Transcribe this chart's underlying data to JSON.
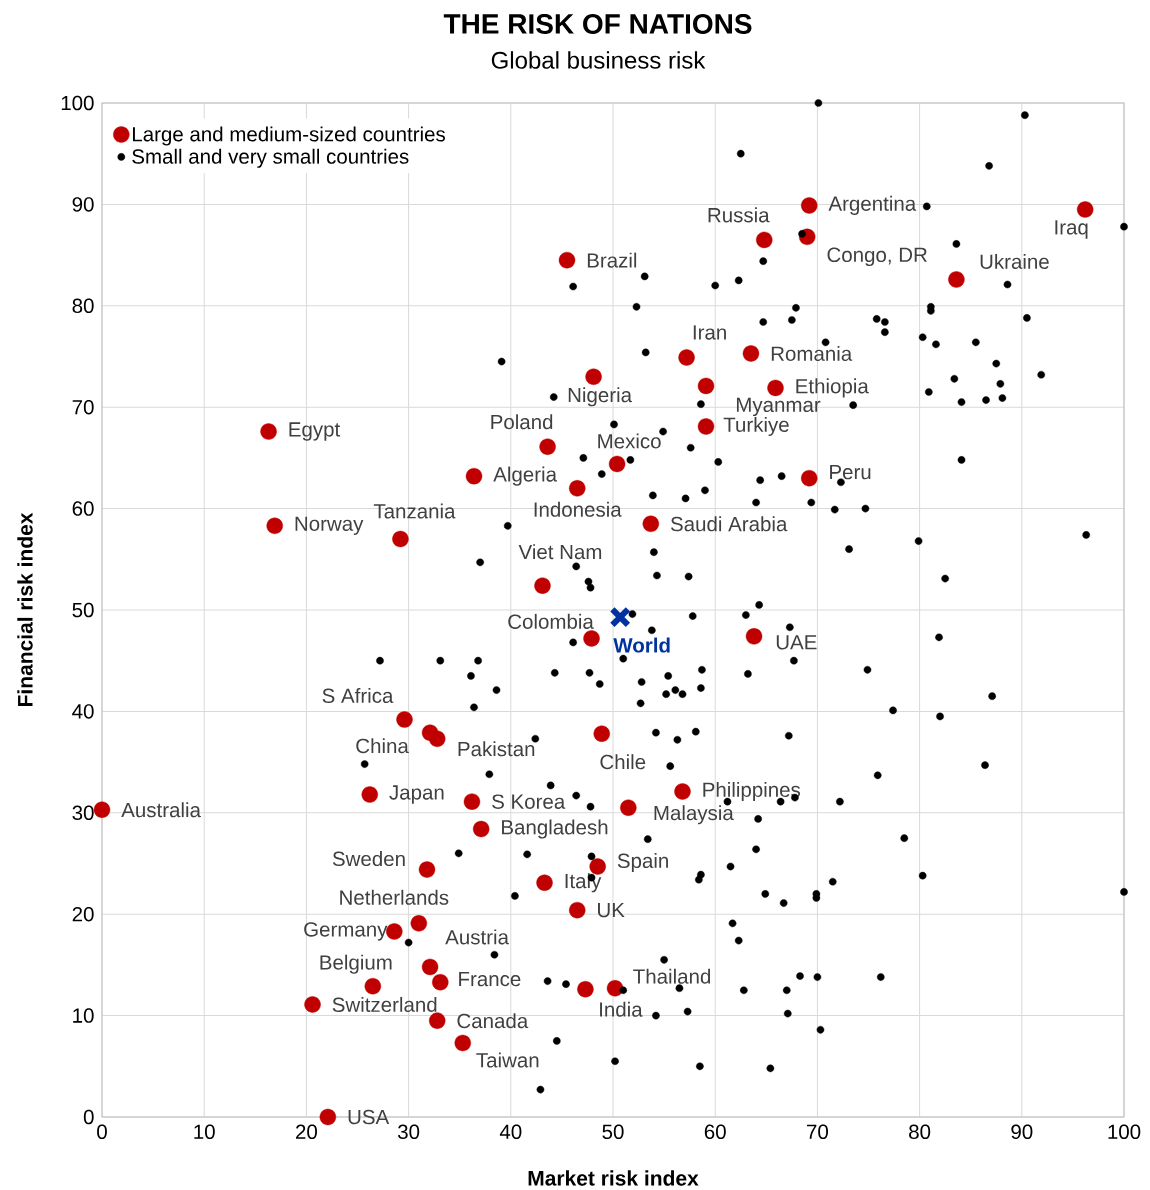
{
  "chart_data": {
    "type": "scatter",
    "title": "THE RISK OF NATIONS",
    "subtitle": "Global business risk",
    "xlabel": "Market risk index",
    "ylabel": "Financial risk index",
    "xlim": [
      0,
      100
    ],
    "ylim": [
      0,
      100
    ],
    "xticks": [
      0,
      10,
      20,
      30,
      40,
      50,
      60,
      70,
      80,
      90,
      100
    ],
    "yticks": [
      0,
      10,
      20,
      30,
      40,
      50,
      60,
      70,
      80,
      90,
      100
    ],
    "grid": true,
    "legend": "top left",
    "series": [
      {
        "name": "Large and medium-sized countries",
        "color": "#c00000",
        "marker": "circle",
        "x": [
          0,
          22.1,
          20.6,
          26.5,
          32.8,
          35.3,
          33.1,
          32.1,
          28.6,
          31.0,
          31.8,
          37.1,
          36.2,
          26.2,
          32.1,
          32.8,
          29.6,
          43.3,
          46.5,
          48.5,
          47.3,
          50.2,
          51.5,
          56.8,
          48.9,
          47.9,
          63.8,
          43.1,
          29.2,
          16.9,
          16.3,
          36.4,
          46.5,
          43.6,
          50.4,
          48.1,
          45.5,
          53.7,
          69.2,
          59.1,
          59.1,
          65.9,
          57.2,
          63.5,
          64.8,
          69.0,
          69.2,
          83.6,
          96.2
        ],
        "values": [
          30.3,
          0,
          11.1,
          12.9,
          9.5,
          7.3,
          13.3,
          14.8,
          18.3,
          19.1,
          24.4,
          28.4,
          31.1,
          31.8,
          37.9,
          37.3,
          39.2,
          23.1,
          20.4,
          24.7,
          12.6,
          12.7,
          30.5,
          32.1,
          37.8,
          47.2,
          47.4,
          52.4,
          57.0,
          58.3,
          67.6,
          63.2,
          62.0,
          66.1,
          64.4,
          73.0,
          84.5,
          58.5,
          63.0,
          68.1,
          72.1,
          71.9,
          74.9,
          75.3,
          86.5,
          86.8,
          89.9,
          82.6,
          89.5
        ]
      },
      {
        "name": "Small and very small countries",
        "color": "#000000",
        "marker": "circle",
        "x": [
          70.1,
          90.3,
          62.5,
          86.8,
          80.7,
          100,
          83.6,
          64.7,
          68.5,
          46.1,
          53.1,
          60.0,
          62.3,
          88.6,
          52.3,
          67.9,
          81.1,
          81.1,
          75.8,
          76.6,
          76.6,
          64.7,
          67.5,
          90.5,
          70.8,
          80.3,
          81.6,
          85.5,
          39.1,
          53.2,
          87.5,
          83.4,
          87.9,
          91.9,
          80.9,
          44.2,
          58.6,
          73.5,
          84.1,
          86.5,
          88.1,
          50.1,
          54.9,
          57.6,
          51.7,
          60.3,
          47.1,
          48.9,
          64.4,
          66.5,
          72.3,
          84.1,
          53.9,
          57.1,
          59.0,
          64.0,
          69.4,
          71.7,
          74.7,
          79.9,
          82.5,
          96.3,
          73.1,
          54.0,
          54.3,
          57.4,
          64.3,
          39.7,
          37.0,
          46.4,
          47.6,
          47.8,
          51.9,
          57.8,
          63.0,
          53.8,
          67.3,
          81.9,
          51.0,
          67.7,
          74.9,
          48.7,
          52.8,
          55.4,
          58.7,
          63.2,
          55.2,
          56.1,
          56.8,
          58.6,
          52.7,
          87.1,
          77.4,
          82.0,
          54.2,
          56.3,
          58.1,
          67.2,
          55.6,
          75.9,
          86.4,
          61.2,
          66.4,
          67.8,
          72.2,
          64.2,
          53.4,
          78.5,
          64.0,
          61.5,
          58.6,
          58.4,
          80.3,
          71.5,
          64.9,
          66.7,
          69.9,
          69.9,
          100,
          61.7,
          62.3,
          55.0,
          68.3,
          70.0,
          76.2,
          51.0,
          56.5,
          62.8,
          67.0,
          54.2,
          57.3,
          67.1,
          70.3,
          58.5,
          65.4,
          46.1,
          27.2,
          33.1,
          36.8,
          36.1,
          38.6,
          44.3,
          47.7,
          36.4,
          42.4,
          25.7,
          37.9,
          43.9,
          46.4,
          47.8,
          34.9,
          41.6,
          47.9,
          47.9,
          40.4,
          30.0,
          38.4,
          43.6,
          45.4,
          44.5,
          50.2,
          42.9
        ],
        "values": [
          100,
          98.8,
          95.0,
          93.8,
          89.8,
          87.8,
          86.1,
          84.4,
          87.1,
          81.9,
          82.9,
          82.0,
          82.5,
          82.1,
          79.9,
          79.8,
          79.9,
          79.5,
          78.7,
          78.4,
          77.4,
          78.4,
          78.6,
          78.8,
          76.4,
          76.9,
          76.2,
          76.4,
          74.5,
          75.4,
          74.3,
          72.8,
          72.3,
          73.2,
          71.5,
          71.0,
          70.3,
          70.2,
          70.5,
          70.7,
          70.9,
          68.3,
          67.6,
          66.0,
          64.8,
          64.6,
          65.0,
          63.4,
          62.8,
          63.2,
          62.6,
          64.8,
          61.3,
          61.0,
          61.8,
          60.6,
          60.6,
          59.9,
          60.0,
          56.8,
          53.1,
          57.4,
          56.0,
          55.7,
          53.4,
          53.3,
          50.5,
          58.3,
          54.7,
          54.3,
          52.8,
          52.2,
          49.6,
          49.4,
          49.5,
          48.0,
          48.3,
          47.3,
          45.2,
          45.0,
          44.1,
          42.7,
          42.9,
          43.5,
          44.1,
          43.7,
          41.7,
          42.1,
          41.7,
          42.3,
          40.8,
          41.5,
          40.1,
          39.5,
          37.9,
          37.2,
          38.0,
          37.6,
          34.6,
          33.7,
          34.7,
          31.1,
          31.1,
          31.5,
          31.1,
          29.4,
          27.4,
          27.5,
          26.4,
          24.7,
          23.9,
          23.4,
          23.8,
          23.2,
          22.0,
          21.1,
          22.0,
          21.6,
          22.2,
          19.1,
          17.4,
          15.5,
          13.9,
          13.8,
          13.8,
          12.5,
          12.7,
          12.5,
          12.5,
          10.0,
          10.4,
          10.2,
          8.6,
          5.0,
          4.8,
          46.8,
          45.0,
          45.0,
          45.0,
          43.5,
          42.1,
          43.8,
          43.8,
          40.4,
          37.3,
          34.8,
          33.8,
          32.7,
          31.7,
          30.6,
          26.0,
          25.9,
          25.7,
          23.6,
          21.8,
          17.2,
          16.0,
          13.4,
          13.1,
          7.5,
          5.5,
          2.7
        ]
      },
      {
        "name": "World",
        "color": "#0033a0",
        "marker": "cross",
        "x": [
          50.7
        ],
        "values": [
          49.3
        ]
      }
    ],
    "annotations": [
      {
        "text": "Australia",
        "x": 0,
        "y": 30.3
      },
      {
        "text": "USA",
        "x": 22.1,
        "y": 0
      },
      {
        "text": "Switzerland",
        "x": 20.6,
        "y": 11.1
      },
      {
        "text": "Belgium",
        "x": 26.5,
        "y": 12.9
      },
      {
        "text": "Canada",
        "x": 32.8,
        "y": 9.5
      },
      {
        "text": "Taiwan",
        "x": 35.3,
        "y": 7.3
      },
      {
        "text": "France",
        "x": 33.1,
        "y": 13.3
      },
      {
        "text": "Austria",
        "x": 32.1,
        "y": 14.8
      },
      {
        "text": "Germany",
        "x": 28.6,
        "y": 18.3
      },
      {
        "text": "Netherlands",
        "x": 31.0,
        "y": 19.1
      },
      {
        "text": "Sweden",
        "x": 31.8,
        "y": 24.4
      },
      {
        "text": "Bangladesh",
        "x": 37.1,
        "y": 28.4
      },
      {
        "text": "S  Korea",
        "x": 36.2,
        "y": 31.1
      },
      {
        "text": "Japan",
        "x": 26.2,
        "y": 31.8
      },
      {
        "text": "China",
        "x": 32.1,
        "y": 37.9
      },
      {
        "text": "Pakistan",
        "x": 32.8,
        "y": 37.3
      },
      {
        "text": "S Africa",
        "x": 29.6,
        "y": 39.2
      },
      {
        "text": "Italy",
        "x": 43.3,
        "y": 23.1
      },
      {
        "text": "UK",
        "x": 46.5,
        "y": 20.4
      },
      {
        "text": "Spain",
        "x": 48.5,
        "y": 24.7
      },
      {
        "text": "India",
        "x": 47.3,
        "y": 12.6
      },
      {
        "text": "Thailand",
        "x": 50.2,
        "y": 12.7
      },
      {
        "text": "Malaysia",
        "x": 51.5,
        "y": 30.5
      },
      {
        "text": "Philippines",
        "x": 56.8,
        "y": 32.1
      },
      {
        "text": "Chile",
        "x": 48.9,
        "y": 37.8
      },
      {
        "text": "Colombia",
        "x": 47.9,
        "y": 47.2
      },
      {
        "text": "UAE",
        "x": 63.8,
        "y": 47.4
      },
      {
        "text": "Viet Nam",
        "x": 43.1,
        "y": 52.4
      },
      {
        "text": "Tanzania",
        "x": 29.2,
        "y": 57.0
      },
      {
        "text": "Norway",
        "x": 16.9,
        "y": 58.3
      },
      {
        "text": "Egypt",
        "x": 16.3,
        "y": 67.6
      },
      {
        "text": "Algeria",
        "x": 36.4,
        "y": 63.2
      },
      {
        "text": "Indonesia",
        "x": 46.5,
        "y": 62.0
      },
      {
        "text": "Poland",
        "x": 43.6,
        "y": 66.1
      },
      {
        "text": "Mexico",
        "x": 50.4,
        "y": 64.4
      },
      {
        "text": "Nigeria",
        "x": 48.1,
        "y": 73.0
      },
      {
        "text": "Brazil",
        "x": 45.5,
        "y": 84.5
      },
      {
        "text": "Saudi Arabia",
        "x": 53.7,
        "y": 58.5
      },
      {
        "text": "Peru",
        "x": 69.2,
        "y": 63.0
      },
      {
        "text": "Turkiye",
        "x": 59.1,
        "y": 68.1
      },
      {
        "text": "Myanmar",
        "x": 59.1,
        "y": 72.1
      },
      {
        "text": "Ethiopia",
        "x": 65.9,
        "y": 71.9
      },
      {
        "text": "Iran",
        "x": 57.2,
        "y": 74.9
      },
      {
        "text": "Romania",
        "x": 63.5,
        "y": 75.3
      },
      {
        "text": "Russia",
        "x": 64.8,
        "y": 86.5
      },
      {
        "text": "Congo, DR",
        "x": 69.0,
        "y": 86.8
      },
      {
        "text": "Argentina",
        "x": 69.2,
        "y": 89.9
      },
      {
        "text": "Ukraine",
        "x": 83.6,
        "y": 82.6
      },
      {
        "text": "Iraq",
        "x": 96.2,
        "y": 89.5
      }
    ]
  }
}
